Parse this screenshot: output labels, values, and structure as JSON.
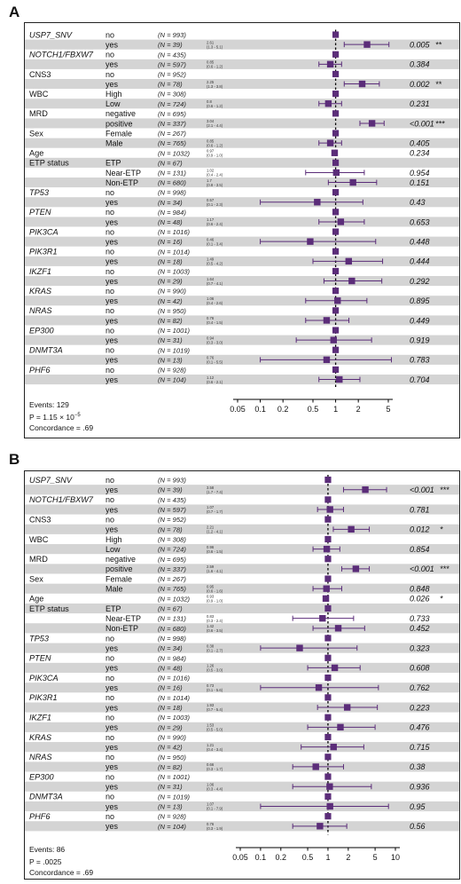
{
  "colors": {
    "marker": "#5b2d79",
    "stripe": "#d4d4d4",
    "line": "#5b2d79"
  },
  "panels": [
    {
      "label": "A",
      "chart_data": {
        "type": "forest",
        "log_scale": true,
        "xlim": [
          0.05,
          5
        ],
        "xticks": [
          "0.05",
          "0.1",
          "0.2",
          "0.5",
          "1",
          "2",
          "5"
        ],
        "xtick_values": [
          0.05,
          0.1,
          0.2,
          0.5,
          1,
          2,
          5
        ],
        "rows": [
          {
            "variable": "USP7_SNV",
            "var_italic": true,
            "level": "no",
            "n": "(N = 993)",
            "ref": true
          },
          {
            "level": "yes",
            "n": "(N = 39)",
            "hr": 2.61,
            "lo": 1.3,
            "hi": 5.1,
            "hr_text": "2.61",
            "ci_text": "(1.3 - 5.1)",
            "p": "0.005",
            "stars": "**"
          },
          {
            "variable": "NOTCH1/FBXW7",
            "var_italic": true,
            "level": "no",
            "n": "(N = 435)",
            "ref": true
          },
          {
            "level": "yes",
            "n": "(N = 597)",
            "hr": 0.85,
            "lo": 0.6,
            "hi": 1.2,
            "hr_text": "0.85",
            "ci_text": "(0.6 - 1.2)",
            "p": "0.384",
            "stars": ""
          },
          {
            "variable": "CNS3",
            "var_italic": false,
            "level": "no",
            "n": "(N = 952)",
            "ref": true
          },
          {
            "level": "yes",
            "n": "(N = 78)",
            "hr": 2.25,
            "lo": 1.3,
            "hi": 3.8,
            "hr_text": "2.25",
            "ci_text": "(1.3 - 3.8)",
            "p": "0.002",
            "stars": "**"
          },
          {
            "variable": "WBC",
            "var_italic": false,
            "level": "High",
            "n": "(N = 308)",
            "ref": true
          },
          {
            "level": "Low",
            "n": "(N = 724)",
            "hr": 0.8,
            "lo": 0.6,
            "hi": 1.2,
            "hr_text": "0.8",
            "ci_text": "(0.6 - 1.2)",
            "p": "0.231",
            "stars": ""
          },
          {
            "variable": "MRD",
            "var_italic": false,
            "level": "negative",
            "n": "(N = 695)",
            "ref": true
          },
          {
            "level": "positive",
            "n": "(N = 337)",
            "hr": 3.04,
            "lo": 2.1,
            "hi": 4.4,
            "hr_text": "3.04",
            "ci_text": "(2.1 - 4.4)",
            "p": "<0.001",
            "stars": "***"
          },
          {
            "variable": "Sex",
            "var_italic": false,
            "level": "Female",
            "n": "(N = 267)",
            "ref": true
          },
          {
            "level": "Male",
            "n": "(N = 765)",
            "hr": 0.85,
            "lo": 0.6,
            "hi": 1.2,
            "hr_text": "0.85",
            "ci_text": "(0.6 - 1.2)",
            "p": "0.405",
            "stars": ""
          },
          {
            "variable": "Age",
            "var_italic": false,
            "level": "",
            "n": "(N = 1032)",
            "hr": 0.97,
            "lo": 0.9,
            "hi": 1.0,
            "hr_text": "0.97",
            "ci_text": "(0.9 - 1.0)",
            "p": "0.234",
            "stars": ""
          },
          {
            "variable": "ETP status",
            "var_italic": false,
            "level": "ETP",
            "n": "(N = 67)",
            "ref": true
          },
          {
            "level": "Near-ETP",
            "n": "(N = 131)",
            "hr": 1.02,
            "lo": 0.4,
            "hi": 2.4,
            "hr_text": "1.02",
            "ci_text": "(0.4 - 2.4)",
            "p": "0.954",
            "stars": ""
          },
          {
            "level": "Non-ETP",
            "n": "(N = 680)",
            "hr": 1.7,
            "lo": 0.8,
            "hi": 3.5,
            "hr_text": "1.7",
            "ci_text": "(0.8 - 3.5)",
            "p": "0.151",
            "stars": ""
          },
          {
            "variable": "TP53",
            "var_italic": true,
            "level": "no",
            "n": "(N = 998)",
            "ref": true
          },
          {
            "level": "yes",
            "n": "(N = 34)",
            "hr": 0.57,
            "lo": 0.1,
            "hi": 2.3,
            "hr_text": "0.57",
            "ci_text": "(0.1 - 2.3)",
            "p": "0.43",
            "stars": ""
          },
          {
            "variable": "PTEN",
            "var_italic": true,
            "level": "no",
            "n": "(N = 984)",
            "ref": true
          },
          {
            "level": "yes",
            "n": "(N = 48)",
            "hr": 1.17,
            "lo": 0.6,
            "hi": 2.4,
            "hr_text": "1.17",
            "ci_text": "(0.6 - 2.4)",
            "p": "0.653",
            "stars": ""
          },
          {
            "variable": "PIK3CA",
            "var_italic": true,
            "level": "no",
            "n": "(N = 1016)",
            "ref": true
          },
          {
            "level": "yes",
            "n": "(N = 16)",
            "hr": 0.46,
            "lo": 0.1,
            "hi": 3.4,
            "hr_text": "0.46",
            "ci_text": "(0.1 - 3.4)",
            "p": "0.448",
            "stars": ""
          },
          {
            "variable": "PIK3R1",
            "var_italic": true,
            "level": "no",
            "n": "(N = 1014)",
            "ref": true
          },
          {
            "level": "yes",
            "n": "(N = 18)",
            "hr": 1.49,
            "lo": 0.5,
            "hi": 4.2,
            "hr_text": "1.49",
            "ci_text": "(0.5 - 4.2)",
            "p": "0.444",
            "stars": ""
          },
          {
            "variable": "IKZF1",
            "var_italic": true,
            "level": "no",
            "n": "(N = 1003)",
            "ref": true
          },
          {
            "level": "yes",
            "n": "(N = 29)",
            "hr": 1.64,
            "lo": 0.7,
            "hi": 4.1,
            "hr_text": "1.64",
            "ci_text": "(0.7 - 4.1)",
            "p": "0.292",
            "stars": ""
          },
          {
            "variable": "KRAS",
            "var_italic": true,
            "level": "no",
            "n": "(N = 990)",
            "ref": true
          },
          {
            "level": "yes",
            "n": "(N = 42)",
            "hr": 1.06,
            "lo": 0.4,
            "hi": 2.6,
            "hr_text": "1.06",
            "ci_text": "(0.4 - 2.6)",
            "p": "0.895",
            "stars": ""
          },
          {
            "variable": "NRAS",
            "var_italic": true,
            "level": "no",
            "n": "(N = 950)",
            "ref": true
          },
          {
            "level": "yes",
            "n": "(N = 82)",
            "hr": 0.76,
            "lo": 0.4,
            "hi": 1.5,
            "hr_text": "0.76",
            "ci_text": "(0.4 - 1.5)",
            "p": "0.449",
            "stars": ""
          },
          {
            "variable": "EP300",
            "var_italic": true,
            "level": "no",
            "n": "(N = 1001)",
            "ref": true
          },
          {
            "level": "yes",
            "n": "(N = 31)",
            "hr": 0.94,
            "lo": 0.3,
            "hi": 3.0,
            "hr_text": "0.94",
            "ci_text": "(0.3 - 3.0)",
            "p": "0.919",
            "stars": ""
          },
          {
            "variable": "DNMT3A",
            "var_italic": true,
            "level": "no",
            "n": "(N = 1019)",
            "ref": true
          },
          {
            "level": "yes",
            "n": "(N = 13)",
            "hr": 0.76,
            "lo": 0.1,
            "hi": 5.5,
            "hr_text": "0.76",
            "ci_text": "(0.1 - 5.5)",
            "p": "0.783",
            "stars": ""
          },
          {
            "variable": "PHF6",
            "var_italic": true,
            "level": "no",
            "n": "(N = 928)",
            "ref": true
          },
          {
            "level": "yes",
            "n": "(N = 104)",
            "hr": 1.12,
            "lo": 0.6,
            "hi": 2.1,
            "hr_text": "1.12",
            "ci_text": "(0.6 - 2.1)",
            "p": "0.704",
            "stars": ""
          }
        ]
      },
      "footer": {
        "events": "Events: 129",
        "pvalue": "P = 1.15 × 10",
        "pexp": "−5",
        "concordance": "Concordance = .69"
      }
    },
    {
      "label": "B",
      "chart_data": {
        "type": "forest",
        "log_scale": true,
        "xlim": [
          0.05,
          10
        ],
        "xticks": [
          "0.05",
          "0.1",
          "0.2",
          "0.5",
          "1",
          "2",
          "5",
          "10"
        ],
        "xtick_values": [
          0.05,
          0.1,
          0.2,
          0.5,
          1,
          2,
          5,
          10
        ],
        "rows": [
          {
            "variable": "USP7_SNV",
            "var_italic": true,
            "level": "no",
            "n": "(N = 993)",
            "ref": true
          },
          {
            "level": "yes",
            "n": "(N = 39)",
            "hr": 3.58,
            "lo": 1.7,
            "hi": 7.4,
            "hr_text": "3.58",
            "ci_text": "(1.7 - 7.4)",
            "p": "<0.001",
            "stars": "***"
          },
          {
            "variable": "NOTCH1/FBXW7",
            "var_italic": true,
            "level": "no",
            "n": "(N = 435)",
            "ref": true
          },
          {
            "level": "yes",
            "n": "(N = 597)",
            "hr": 1.07,
            "lo": 0.7,
            "hi": 1.7,
            "hr_text": "1.07",
            "ci_text": "(0.7 - 1.7)",
            "p": "0.781",
            "stars": ""
          },
          {
            "variable": "CNS3",
            "var_italic": false,
            "level": "no",
            "n": "(N = 952)",
            "ref": true
          },
          {
            "level": "yes",
            "n": "(N = 78)",
            "hr": 2.21,
            "lo": 1.2,
            "hi": 4.1,
            "hr_text": "2.21",
            "ci_text": "(1.2 - 4.1)",
            "p": "0.012",
            "stars": "*"
          },
          {
            "variable": "WBC",
            "var_italic": false,
            "level": "High",
            "n": "(N = 308)",
            "ref": true
          },
          {
            "level": "Low",
            "n": "(N = 724)",
            "hr": 0.96,
            "lo": 0.6,
            "hi": 1.5,
            "hr_text": "0.96",
            "ci_text": "(0.6 - 1.5)",
            "p": "0.854",
            "stars": ""
          },
          {
            "variable": "MRD",
            "var_italic": false,
            "level": "negative",
            "n": "(N = 695)",
            "ref": true
          },
          {
            "level": "positive",
            "n": "(N = 337)",
            "hr": 2.59,
            "lo": 1.6,
            "hi": 4.1,
            "hr_text": "2.59",
            "ci_text": "(1.6 - 4.1)",
            "p": "<0.001",
            "stars": "***"
          },
          {
            "variable": "Sex",
            "var_italic": false,
            "level": "Female",
            "n": "(N = 267)",
            "ref": true
          },
          {
            "level": "Male",
            "n": "(N = 765)",
            "hr": 0.95,
            "lo": 0.6,
            "hi": 1.6,
            "hr_text": "0.95",
            "ci_text": "(0.6 - 1.6)",
            "p": "0.848",
            "stars": ""
          },
          {
            "variable": "Age",
            "var_italic": false,
            "level": "",
            "n": "(N = 1032)",
            "hr": 0.93,
            "lo": 0.9,
            "hi": 1.0,
            "hr_text": "0.93",
            "ci_text": "(0.9 - 1.0)",
            "p": "0.026",
            "stars": "*"
          },
          {
            "variable": "ETP status",
            "var_italic": false,
            "level": "ETP",
            "n": "(N = 67)",
            "ref": true
          },
          {
            "level": "Near-ETP",
            "n": "(N = 131)",
            "hr": 0.83,
            "lo": 0.3,
            "hi": 2.4,
            "hr_text": "0.83",
            "ci_text": "(0.3 - 2.4)",
            "p": "0.733",
            "stars": ""
          },
          {
            "level": "Non-ETP",
            "n": "(N = 680)",
            "hr": 1.42,
            "lo": 0.6,
            "hi": 3.5,
            "hr_text": "1.42",
            "ci_text": "(0.6 - 3.5)",
            "p": "0.452",
            "stars": ""
          },
          {
            "variable": "TP53",
            "var_italic": true,
            "level": "no",
            "n": "(N = 998)",
            "ref": true
          },
          {
            "level": "yes",
            "n": "(N = 34)",
            "hr": 0.38,
            "lo": 0.1,
            "hi": 2.7,
            "hr_text": "0.38",
            "ci_text": "(0.1 - 2.7)",
            "p": "0.323",
            "stars": ""
          },
          {
            "variable": "PTEN",
            "var_italic": true,
            "level": "no",
            "n": "(N = 984)",
            "ref": true
          },
          {
            "level": "yes",
            "n": "(N = 48)",
            "hr": 1.26,
            "lo": 0.5,
            "hi": 3.0,
            "hr_text": "1.26",
            "ci_text": "(0.5 - 3.0)",
            "p": "0.608",
            "stars": ""
          },
          {
            "variable": "PIK3CA",
            "var_italic": true,
            "level": "no",
            "n": "(N = 1016)",
            "ref": true
          },
          {
            "level": "yes",
            "n": "(N = 16)",
            "hr": 0.73,
            "lo": 0.1,
            "hi": 5.6,
            "hr_text": "0.73",
            "ci_text": "(0.1 - 5.6)",
            "p": "0.762",
            "stars": ""
          },
          {
            "variable": "PIK3R1",
            "var_italic": true,
            "level": "no",
            "n": "(N = 1014)",
            "ref": true
          },
          {
            "level": "yes",
            "n": "(N = 18)",
            "hr": 1.93,
            "lo": 0.7,
            "hi": 5.4,
            "hr_text": "1.93",
            "ci_text": "(0.7 - 5.4)",
            "p": "0.223",
            "stars": ""
          },
          {
            "variable": "IKZF1",
            "var_italic": true,
            "level": "no",
            "n": "(N = 1003)",
            "ref": true
          },
          {
            "level": "yes",
            "n": "(N = 29)",
            "hr": 1.53,
            "lo": 0.5,
            "hi": 5.0,
            "hr_text": "1.53",
            "ci_text": "(0.5 - 5.0)",
            "p": "0.476",
            "stars": ""
          },
          {
            "variable": "KRAS",
            "var_italic": true,
            "level": "no",
            "n": "(N = 990)",
            "ref": true
          },
          {
            "level": "yes",
            "n": "(N = 42)",
            "hr": 1.21,
            "lo": 0.4,
            "hi": 3.4,
            "hr_text": "1.21",
            "ci_text": "(0.4 - 3.4)",
            "p": "0.715",
            "stars": ""
          },
          {
            "variable": "NRAS",
            "var_italic": true,
            "level": "no",
            "n": "(N = 950)",
            "ref": true
          },
          {
            "level": "yes",
            "n": "(N = 82)",
            "hr": 0.66,
            "lo": 0.3,
            "hi": 1.7,
            "hr_text": "0.66",
            "ci_text": "(0.3 - 1.7)",
            "p": "0.38",
            "stars": ""
          },
          {
            "variable": "EP300",
            "var_italic": true,
            "level": "no",
            "n": "(N = 1001)",
            "ref": true
          },
          {
            "level": "yes",
            "n": "(N = 31)",
            "hr": 1.06,
            "lo": 0.3,
            "hi": 4.4,
            "hr_text": "1.06",
            "ci_text": "(0.3 - 4.4)",
            "p": "0.936",
            "stars": ""
          },
          {
            "variable": "DNMT3A",
            "var_italic": true,
            "level": "no",
            "n": "(N = 1019)",
            "ref": true
          },
          {
            "level": "yes",
            "n": "(N = 13)",
            "hr": 1.07,
            "lo": 0.1,
            "hi": 7.9,
            "hr_text": "1.07",
            "ci_text": "(0.1 - 7.9)",
            "p": "0.95",
            "stars": ""
          },
          {
            "variable": "PHF6",
            "var_italic": true,
            "level": "no",
            "n": "(N = 928)",
            "ref": true
          },
          {
            "level": "yes",
            "n": "(N = 104)",
            "hr": 0.76,
            "lo": 0.3,
            "hi": 1.9,
            "hr_text": "0.76",
            "ci_text": "(0.3 - 1.9)",
            "p": "0.56",
            "stars": ""
          }
        ]
      },
      "footer": {
        "events": "Events: 86",
        "pvalue": "P = .0025",
        "pexp": "",
        "concordance": "Concordance = .69"
      }
    }
  ]
}
